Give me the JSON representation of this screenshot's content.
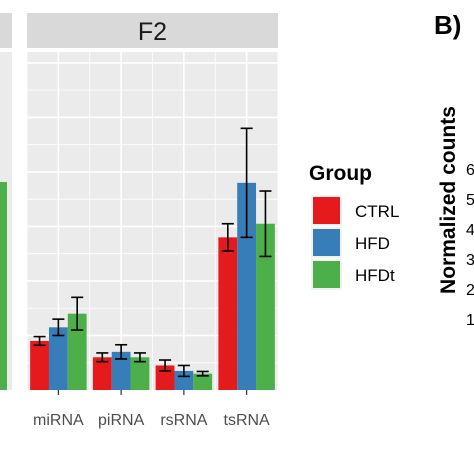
{
  "chart_data": {
    "type": "bar",
    "facet_label": "F2",
    "categories": [
      "miRNA",
      "piRNA",
      "rsRNA",
      "tsRNA"
    ],
    "ylim": [
      0,
      62
    ],
    "legend_title": "Group",
    "legend_position": "right",
    "grid": true,
    "series": [
      {
        "name": "CTRL",
        "color": "#e41a1c",
        "values": [
          9,
          6,
          4.5,
          28
        ],
        "errors": [
          0.8,
          0.8,
          1.0,
          2.5
        ]
      },
      {
        "name": "HFD",
        "color": "#377eb8",
        "values": [
          11.5,
          7,
          3.5,
          38
        ],
        "errors": [
          1.5,
          1.3,
          1.0,
          10
        ]
      },
      {
        "name": "HFDt",
        "color": "#4daf4a",
        "values": [
          14,
          6,
          3,
          30.5
        ],
        "errors": [
          3,
          0.8,
          0.4,
          6
        ]
      }
    ]
  },
  "right_panel": {
    "letter": "B)",
    "ylabel": "Normalized counts",
    "ticks": [
      "6",
      "5",
      "4",
      "3",
      "2",
      "1"
    ]
  }
}
